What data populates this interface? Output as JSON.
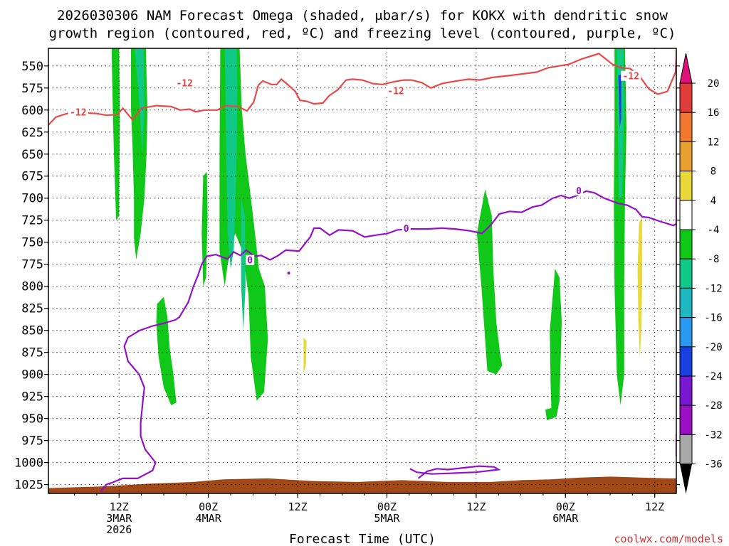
{
  "title": {
    "line1": "2026030306 NAM Forecast Omega (shaded, μbar/s) for KOKX with dendritic snow",
    "line2": "growth region (contoured, red, ºC) and freezing level (contoured, purple, ºC)"
  },
  "credit": "coolwx.com/models",
  "credit_color": "#d03030",
  "chart_data": {
    "type": "time-height cross section",
    "xlabel": "Forecast Time (UTC)",
    "ylabel": "Pressure (hPa)",
    "x_range_hours": [
      -3.5,
      66.5
    ],
    "y_range_hpa": [
      530,
      1035
    ],
    "y_ticks": [
      550,
      575,
      600,
      625,
      650,
      675,
      700,
      725,
      750,
      775,
      800,
      825,
      850,
      875,
      900,
      925,
      950,
      975,
      1000,
      1025
    ],
    "x_ticks": [
      {
        "hour": 6,
        "line1": "12Z",
        "line2": "3MAR",
        "line3": "2026"
      },
      {
        "hour": 18,
        "line1": "00Z",
        "line2": "4MAR",
        "line3": ""
      },
      {
        "hour": 30,
        "line1": "12Z",
        "line2": "",
        "line3": ""
      },
      {
        "hour": 42,
        "line1": "00Z",
        "line2": "5MAR",
        "line3": ""
      },
      {
        "hour": 54,
        "line1": "12Z",
        "line2": "",
        "line3": ""
      },
      {
        "hour": 66,
        "line1": "00Z",
        "line2": "6MAR",
        "line3": ""
      },
      {
        "hour": 78,
        "line1": "12Z",
        "line2": "",
        "line3": ""
      }
    ],
    "colorbar": {
      "levels": [
        "20",
        "16",
        "12",
        "8",
        "4",
        "-4",
        "-8",
        "-12",
        "-16",
        "-20",
        "-24",
        "-28",
        "-32",
        "-36"
      ],
      "colors": [
        "#e03c3c",
        "#f07830",
        "#e8a030",
        "#e8d838",
        "#ffffff",
        "#10c818",
        "#10c888",
        "#20b8c0",
        "#2898f0",
        "#1840e0",
        "#7818d0",
        "#9810c0",
        "#a8a8a8"
      ],
      "top_arrow_color": "#e0107a",
      "bottom_arrow_color": "#000000"
    },
    "contour_labels": [
      {
        "text": "-12",
        "color": "#e04040",
        "hour": 0.5,
        "p": 603
      },
      {
        "text": "-12",
        "color": "#e04040",
        "hour": 14.8,
        "p": 570
      },
      {
        "text": "-12",
        "color": "#e04040",
        "hour": 43.2,
        "p": 579
      },
      {
        "text": "-12",
        "color": "#e04040",
        "hour": 74.8,
        "p": 562
      },
      {
        "text": "0",
        "color": "#9010c0",
        "hour": 44.6,
        "p": 735
      },
      {
        "text": "0",
        "color": "#9010c0",
        "hour": 67.8,
        "p": 692
      },
      {
        "text": "0",
        "color": "#9010c0",
        "hour": 23.6,
        "p": 771
      }
    ],
    "dgz_top_12C": [
      [
        -3.5,
        617
      ],
      [
        -2.5,
        608
      ],
      [
        -1,
        604
      ],
      [
        1,
        603
      ],
      [
        3,
        604
      ],
      [
        4.3,
        606
      ],
      [
        5.8,
        605
      ],
      [
        6.5,
        598
      ],
      [
        7.8,
        611
      ],
      [
        9,
        598
      ],
      [
        11,
        595
      ],
      [
        13,
        596
      ],
      [
        14.2,
        600
      ],
      [
        15.5,
        599
      ],
      [
        16.3,
        602
      ],
      [
        17.5,
        600
      ],
      [
        19.2,
        600
      ],
      [
        20.3,
        595
      ],
      [
        22,
        596
      ],
      [
        23.2,
        601
      ],
      [
        24.1,
        591
      ],
      [
        24.7,
        572
      ],
      [
        25.3,
        567
      ],
      [
        26.5,
        571
      ],
      [
        27.2,
        571
      ],
      [
        27.8,
        565
      ],
      [
        28.8,
        572
      ],
      [
        29.7,
        579
      ],
      [
        30.3,
        589
      ],
      [
        31.2,
        590
      ],
      [
        32.2,
        593
      ],
      [
        33.4,
        592
      ],
      [
        34.2,
        584
      ],
      [
        35.4,
        577
      ],
      [
        36.5,
        566
      ],
      [
        37.4,
        565
      ],
      [
        38.7,
        566
      ],
      [
        40.1,
        570
      ],
      [
        41.4,
        571
      ],
      [
        42.9,
        568
      ],
      [
        44.3,
        566
      ],
      [
        45.3,
        566
      ],
      [
        46.7,
        569
      ],
      [
        47.9,
        575
      ],
      [
        49.4,
        570
      ],
      [
        51.3,
        567
      ],
      [
        53,
        565
      ],
      [
        54.5,
        566
      ],
      [
        56.2,
        563
      ],
      [
        58.4,
        561
      ],
      [
        60.3,
        559
      ],
      [
        62.1,
        557
      ],
      [
        63.7,
        552
      ],
      [
        65.1,
        550
      ],
      [
        66.5,
        548
      ],
      [
        68.2,
        542
      ],
      [
        70.5,
        536
      ],
      [
        72.3,
        548
      ],
      [
        73.4,
        552
      ],
      [
        74.7,
        553
      ],
      [
        76,
        562
      ],
      [
        77.2,
        576
      ],
      [
        78.4,
        582
      ],
      [
        79.7,
        579
      ],
      [
        80.8,
        557
      ],
      [
        81.6,
        540
      ],
      [
        82.3,
        532
      ]
    ],
    "freezing_level_0C": [
      [
        3.5,
        1033
      ],
      [
        4.3,
        1025
      ],
      [
        5,
        1023
      ],
      [
        6.5,
        1018
      ],
      [
        8.5,
        1018
      ],
      [
        10.5,
        1009
      ],
      [
        10.9,
        1000
      ],
      [
        9.5,
        985
      ],
      [
        8.9,
        970
      ],
      [
        8.9,
        955
      ],
      [
        9.2,
        930
      ],
      [
        9.4,
        915
      ],
      [
        8.7,
        900
      ],
      [
        7.2,
        885
      ],
      [
        6.7,
        868
      ],
      [
        7.2,
        858
      ],
      [
        8.8,
        850
      ],
      [
        10.5,
        845
      ],
      [
        12,
        842
      ],
      [
        13.6,
        838
      ],
      [
        14.1,
        835
      ],
      [
        15.3,
        818
      ],
      [
        16,
        800
      ],
      [
        16.6,
        788
      ],
      [
        17.1,
        775
      ],
      [
        17.8,
        766
      ],
      [
        19,
        764
      ],
      [
        20.6,
        769
      ],
      [
        21.4,
        761
      ],
      [
        22.3,
        765
      ],
      [
        23.1,
        759
      ],
      [
        24.2,
        766
      ],
      [
        25.1,
        765
      ],
      [
        26.3,
        770
      ],
      [
        27.4,
        765
      ],
      [
        28.4,
        759
      ],
      [
        30.2,
        760
      ],
      [
        31.7,
        744
      ],
      [
        32.2,
        734
      ],
      [
        33,
        734
      ],
      [
        34.3,
        742
      ],
      [
        35.5,
        736
      ],
      [
        37.4,
        737
      ],
      [
        39,
        744
      ],
      [
        40.5,
        742
      ],
      [
        42.1,
        740
      ],
      [
        43.4,
        736
      ],
      [
        45.2,
        735
      ],
      [
        47.4,
        735
      ],
      [
        49.4,
        734
      ],
      [
        51.2,
        735
      ],
      [
        53.1,
        737
      ],
      [
        54.8,
        740
      ],
      [
        56,
        730
      ],
      [
        57.1,
        718
      ],
      [
        58.5,
        715
      ],
      [
        60.1,
        716
      ],
      [
        61.6,
        710
      ],
      [
        62.8,
        708
      ],
      [
        64.3,
        700
      ],
      [
        65.4,
        697
      ],
      [
        66.5,
        700
      ],
      [
        67.6,
        697
      ],
      [
        68.8,
        692
      ],
      [
        69.9,
        694
      ],
      [
        71.2,
        700
      ],
      [
        73.1,
        706
      ],
      [
        74.3,
        708
      ],
      [
        75.5,
        713
      ],
      [
        76.3,
        721
      ],
      [
        77.2,
        722
      ],
      [
        78.6,
        726
      ],
      [
        80.5,
        731
      ],
      [
        82.6,
        729
      ],
      [
        83.6,
        722
      ],
      [
        84.7,
        712
      ],
      [
        85.4,
        698
      ]
    ],
    "freezing_level_lower": [
      [
        46.2,
        1018
      ],
      [
        47.4,
        1010
      ],
      [
        48.7,
        1007
      ],
      [
        50.2,
        1008
      ],
      [
        52.2,
        1006
      ],
      [
        54.4,
        1004
      ],
      [
        56.4,
        1005
      ],
      [
        57,
        1008
      ],
      [
        54,
        1011
      ],
      [
        51,
        1012
      ],
      [
        48,
        1013
      ],
      [
        46,
        1011
      ],
      [
        45.1,
        1007
      ]
    ],
    "freezing_level_right": [
      [
        82.2,
        982
      ],
      [
        83.2,
        975
      ],
      [
        84.6,
        970
      ],
      [
        86,
        968
      ],
      [
        86.5,
        968
      ]
    ],
    "freezing_level_right2": [
      [
        82.2,
        982
      ],
      [
        84,
        992
      ],
      [
        85.5,
        993
      ],
      [
        86.5,
        990
      ]
    ],
    "omega_green_regions": [
      [
        [
          5,
          530
        ],
        [
          6,
          530
        ],
        [
          6.1,
          600
        ],
        [
          6,
          720
        ],
        [
          5.6,
          725
        ],
        [
          5.3,
          650
        ],
        [
          5.1,
          580
        ]
      ],
      [
        [
          7.6,
          530
        ],
        [
          9.6,
          530
        ],
        [
          9.8,
          600
        ],
        [
          9.7,
          650
        ],
        [
          9.4,
          700
        ],
        [
          8.9,
          740
        ],
        [
          8.3,
          770
        ],
        [
          8,
          745
        ],
        [
          8,
          700
        ],
        [
          7.8,
          640
        ],
        [
          7.6,
          600
        ]
      ],
      [
        [
          11.1,
          820
        ],
        [
          12,
          812
        ],
        [
          12.5,
          835
        ],
        [
          12.8,
          870
        ],
        [
          13.3,
          900
        ],
        [
          13.7,
          932
        ],
        [
          13,
          935
        ],
        [
          12,
          915
        ],
        [
          11.3,
          880
        ],
        [
          11,
          840
        ]
      ],
      [
        [
          17.3,
          675
        ],
        [
          17.8,
          670
        ],
        [
          17.9,
          720
        ],
        [
          17.7,
          790
        ],
        [
          17.3,
          800
        ],
        [
          17.1,
          740
        ]
      ],
      [
        [
          19.6,
          530
        ],
        [
          22.2,
          530
        ],
        [
          22.5,
          600
        ],
        [
          23,
          650
        ],
        [
          24,
          720
        ],
        [
          24.8,
          780
        ],
        [
          25.6,
          800
        ],
        [
          26,
          860
        ],
        [
          25.5,
          920
        ],
        [
          24.5,
          930
        ],
        [
          23.7,
          880
        ],
        [
          23.4,
          810
        ],
        [
          22.6,
          760
        ],
        [
          21.6,
          740
        ],
        [
          20.6,
          775
        ],
        [
          20.2,
          800
        ],
        [
          19.5,
          760
        ],
        [
          19.5,
          650
        ]
      ],
      [
        [
          54.1,
          740
        ],
        [
          55.2,
          690
        ],
        [
          56.1,
          720
        ],
        [
          56.3,
          780
        ],
        [
          56.7,
          840
        ],
        [
          57.2,
          875
        ],
        [
          57.5,
          890
        ],
        [
          56.7,
          900
        ],
        [
          55.5,
          896
        ],
        [
          55.2,
          860
        ],
        [
          54.7,
          800
        ]
      ],
      [
        [
          63.3,
          940
        ],
        [
          64.1,
          938
        ],
        [
          64,
          910
        ],
        [
          63.9,
          850
        ],
        [
          64.6,
          780
        ],
        [
          65.2,
          790
        ],
        [
          65.5,
          840
        ],
        [
          65.2,
          930
        ],
        [
          64.8,
          948
        ],
        [
          63.5,
          952
        ]
      ],
      [
        [
          72.6,
          530
        ],
        [
          74,
          530
        ],
        [
          74.2,
          620
        ],
        [
          74,
          700
        ],
        [
          73.9,
          800
        ],
        [
          73.9,
          900
        ],
        [
          73.4,
          935
        ],
        [
          72.9,
          900
        ],
        [
          72.6,
          800
        ],
        [
          72.5,
          700
        ],
        [
          72.6,
          620
        ]
      ]
    ],
    "omega_teal_regions": [
      [
        [
          8.1,
          530
        ],
        [
          9.3,
          530
        ],
        [
          9.4,
          600
        ],
        [
          9.1,
          650
        ],
        [
          8.8,
          600
        ]
      ],
      [
        [
          20.2,
          530
        ],
        [
          21.8,
          530
        ],
        [
          21.9,
          580
        ],
        [
          21.8,
          650
        ],
        [
          21.6,
          720
        ],
        [
          21.4,
          760
        ],
        [
          21,
          780
        ],
        [
          20.6,
          740
        ],
        [
          20.4,
          650
        ],
        [
          20.3,
          580
        ]
      ],
      [
        [
          22.4,
          700
        ],
        [
          22.9,
          720
        ],
        [
          23,
          800
        ],
        [
          22.7,
          850
        ],
        [
          22.4,
          800
        ]
      ],
      [
        [
          72.9,
          530
        ],
        [
          73.8,
          530
        ],
        [
          73.9,
          600
        ],
        [
          73.6,
          700
        ],
        [
          73.2,
          700
        ],
        [
          73,
          600
        ]
      ]
    ],
    "omega_blue_regions": [
      [
        [
          73.1,
          560
        ],
        [
          73.5,
          560
        ],
        [
          73.5,
          610
        ],
        [
          73.3,
          620
        ]
      ]
    ],
    "omega_yellow_regions": [
      [
        [
          30.8,
          858
        ],
        [
          31.2,
          862
        ],
        [
          31.1,
          890
        ],
        [
          30.8,
          898
        ]
      ],
      [
        [
          75.9,
          728
        ],
        [
          76.3,
          722
        ],
        [
          76.3,
          800
        ],
        [
          76.2,
          850
        ],
        [
          76,
          880
        ],
        [
          75.8,
          840
        ],
        [
          75.7,
          780
        ]
      ]
    ],
    "terrain": {
      "color": "#a04818",
      "profile": [
        [
          -3.5,
          1029
        ],
        [
          4,
          1027
        ],
        [
          10,
          1024
        ],
        [
          16,
          1022
        ],
        [
          20,
          1019
        ],
        [
          26,
          1018
        ],
        [
          32,
          1021
        ],
        [
          38,
          1022
        ],
        [
          44,
          1020
        ],
        [
          50,
          1022
        ],
        [
          56,
          1022
        ],
        [
          60,
          1020
        ],
        [
          64,
          1019
        ],
        [
          68,
          1017
        ],
        [
          72,
          1016
        ],
        [
          76,
          1017
        ],
        [
          80,
          1018
        ],
        [
          84,
          1018
        ],
        [
          86.5,
          1018
        ]
      ]
    }
  }
}
